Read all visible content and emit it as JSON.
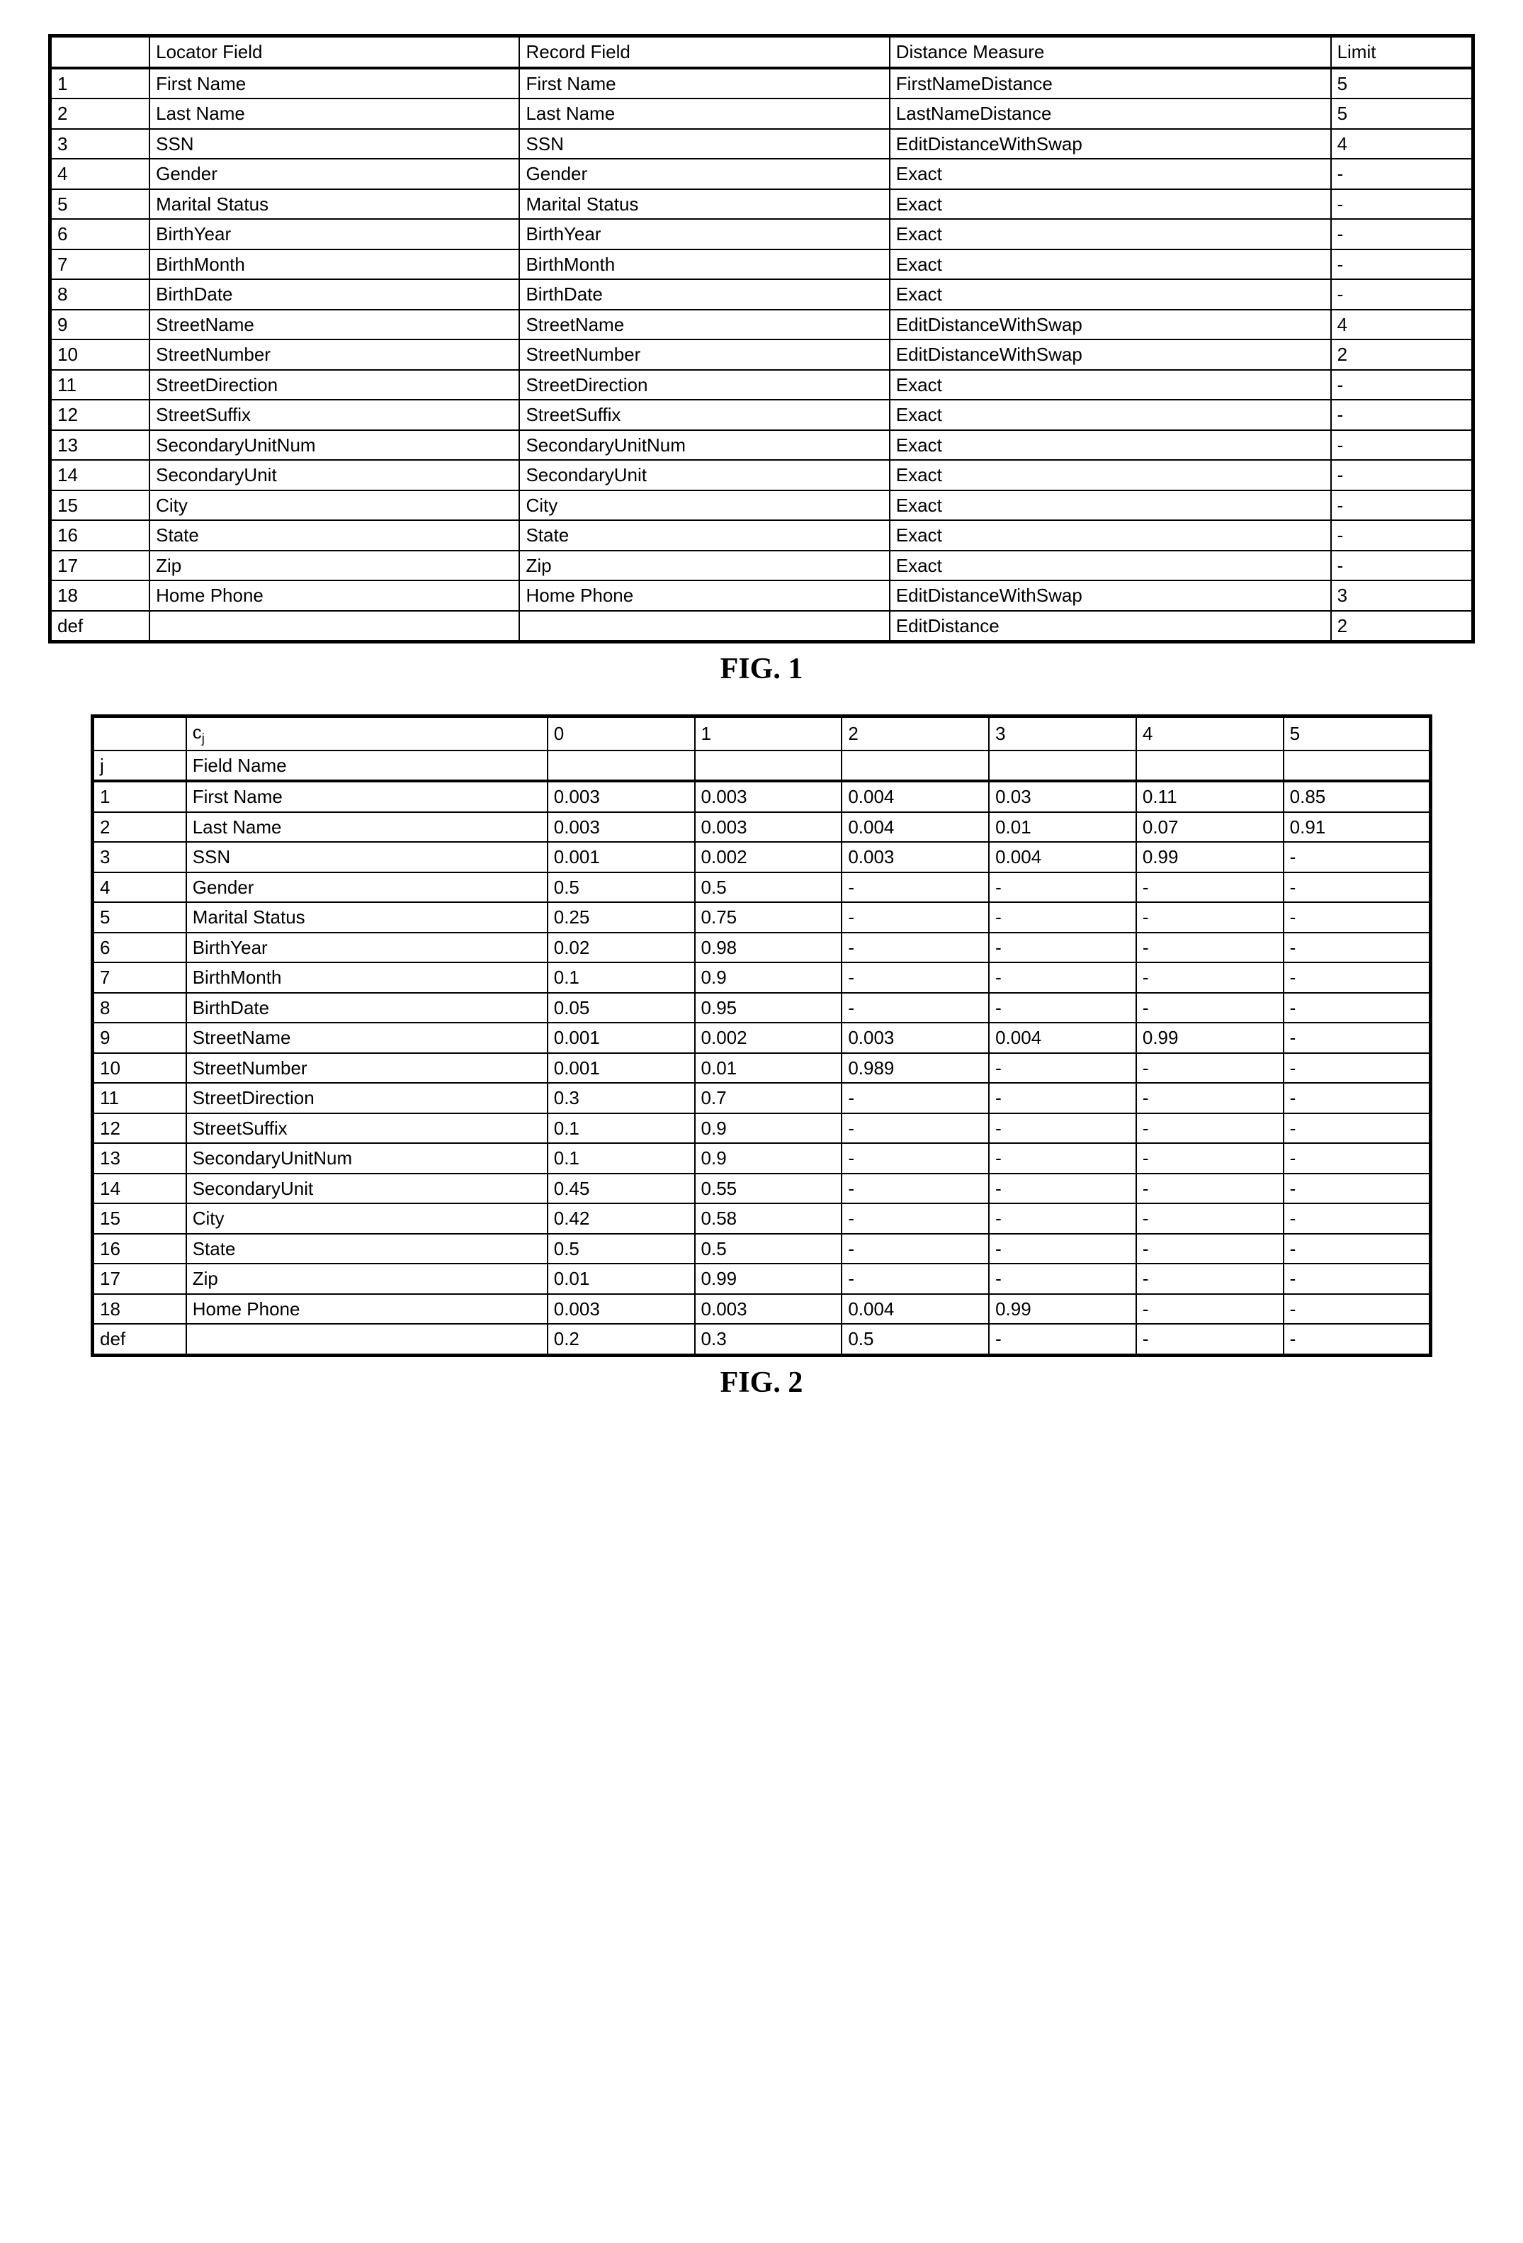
{
  "fig1": {
    "caption": "FIG. 1",
    "columns": [
      "",
      "Locator Field",
      "Record Field",
      "Distance Measure",
      "Limit"
    ],
    "rows": [
      [
        "1",
        "First Name",
        "First Name",
        "FirstNameDistance",
        "5"
      ],
      [
        "2",
        "Last Name",
        "Last Name",
        "LastNameDistance",
        "5"
      ],
      [
        "3",
        "SSN",
        "SSN",
        "EditDistanceWithSwap",
        "4"
      ],
      [
        "4",
        "Gender",
        "Gender",
        "Exact",
        "-"
      ],
      [
        "5",
        "Marital Status",
        "Marital Status",
        "Exact",
        "-"
      ],
      [
        "6",
        "BirthYear",
        "BirthYear",
        "Exact",
        "-"
      ],
      [
        "7",
        "BirthMonth",
        "BirthMonth",
        "Exact",
        "-"
      ],
      [
        "8",
        "BirthDate",
        "BirthDate",
        "Exact",
        "-"
      ],
      [
        "9",
        "StreetName",
        "StreetName",
        "EditDistanceWithSwap",
        "4"
      ],
      [
        "10",
        "StreetNumber",
        "StreetNumber",
        "EditDistanceWithSwap",
        "2"
      ],
      [
        "11",
        "StreetDirection",
        "StreetDirection",
        "Exact",
        "-"
      ],
      [
        "12",
        "StreetSuffix",
        "StreetSuffix",
        "Exact",
        "-"
      ],
      [
        "13",
        "SecondaryUnitNum",
        "SecondaryUnitNum",
        "Exact",
        "-"
      ],
      [
        "14",
        "SecondaryUnit",
        "SecondaryUnit",
        "Exact",
        "-"
      ],
      [
        "15",
        "City",
        "City",
        "Exact",
        "-"
      ],
      [
        "16",
        "State",
        "State",
        "Exact",
        "-"
      ],
      [
        "17",
        "Zip",
        "Zip",
        "Exact",
        "-"
      ],
      [
        "18",
        "Home Phone",
        "Home Phone",
        "EditDistanceWithSwap",
        "3"
      ],
      [
        "def",
        "",
        "",
        "EditDistance",
        "2"
      ]
    ]
  },
  "fig2": {
    "caption": "FIG. 2",
    "header1": [
      "",
      "cⱼ",
      "0",
      "1",
      "2",
      "3",
      "4",
      "5"
    ],
    "header2": [
      "j",
      "Field Name",
      "",
      "",
      "",
      "",
      "",
      ""
    ],
    "rows": [
      [
        "1",
        "First Name",
        "0.003",
        "0.003",
        "0.004",
        "0.03",
        "0.11",
        "0.85"
      ],
      [
        "2",
        "Last Name",
        "0.003",
        "0.003",
        "0.004",
        "0.01",
        "0.07",
        "0.91"
      ],
      [
        "3",
        "SSN",
        "0.001",
        "0.002",
        "0.003",
        "0.004",
        "0.99",
        "-"
      ],
      [
        "4",
        "Gender",
        "0.5",
        "0.5",
        "-",
        "-",
        "-",
        "-"
      ],
      [
        "5",
        "Marital Status",
        "0.25",
        "0.75",
        "-",
        "-",
        "-",
        "-"
      ],
      [
        "6",
        "BirthYear",
        "0.02",
        "0.98",
        "-",
        "-",
        "-",
        "-"
      ],
      [
        "7",
        "BirthMonth",
        "0.1",
        "0.9",
        "-",
        "-",
        "-",
        "-"
      ],
      [
        "8",
        "BirthDate",
        "0.05",
        "0.95",
        "-",
        "-",
        "-",
        "-"
      ],
      [
        "9",
        "StreetName",
        "0.001",
        "0.002",
        "0.003",
        "0.004",
        "0.99",
        "-"
      ],
      [
        "10",
        "StreetNumber",
        "0.001",
        "0.01",
        "0.989",
        "-",
        "-",
        "-"
      ],
      [
        "11",
        "StreetDirection",
        "0.3",
        "0.7",
        "-",
        "-",
        "-",
        "-"
      ],
      [
        "12",
        "StreetSuffix",
        "0.1",
        "0.9",
        "-",
        "-",
        "-",
        "-"
      ],
      [
        "13",
        "SecondaryUnitNum",
        "0.1",
        "0.9",
        "-",
        "-",
        "-",
        "-"
      ],
      [
        "14",
        "SecondaryUnit",
        "0.45",
        "0.55",
        "-",
        "-",
        "-",
        "-"
      ],
      [
        "15",
        "City",
        "0.42",
        "0.58",
        "-",
        "-",
        "-",
        "-"
      ],
      [
        "16",
        "State",
        "0.5",
        "0.5",
        "-",
        "-",
        "-",
        "-"
      ],
      [
        "17",
        "Zip",
        "0.01",
        "0.99",
        "-",
        "-",
        "-",
        "-"
      ],
      [
        "18",
        "Home Phone",
        "0.003",
        "0.003",
        "0.004",
        "0.99",
        "-",
        "-"
      ],
      [
        "def",
        "",
        "0.2",
        "0.3",
        "0.5",
        "-",
        "-",
        "-"
      ]
    ]
  }
}
